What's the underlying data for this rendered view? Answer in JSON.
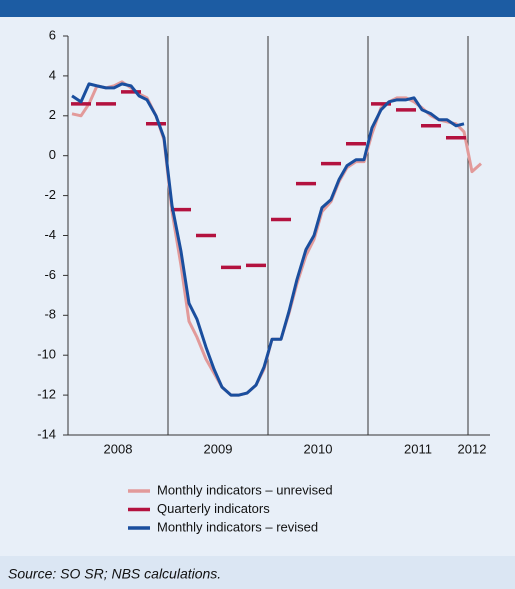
{
  "chart_data": {
    "type": "line",
    "xlim": [
      2008,
      2012.22
    ],
    "ylim": [
      -14,
      6
    ],
    "yticks": [
      -14,
      -12,
      -10,
      -8,
      -6,
      -4,
      -2,
      0,
      2,
      4,
      6
    ],
    "xticks": [
      {
        "value": 2008.5,
        "label": "2008"
      },
      {
        "value": 2009.5,
        "label": "2009"
      },
      {
        "value": 2010.5,
        "label": "2010"
      },
      {
        "value": 2011.5,
        "label": "2011"
      },
      {
        "value": 2012.04,
        "label": "2012"
      }
    ],
    "xgrid": [
      2009,
      2010,
      2011,
      2012
    ],
    "series": [
      {
        "name": "Monthly indicators – unrevised",
        "color": "#e29a9a",
        "kind": "line",
        "x": [
          2008.04,
          2008.13,
          2008.21,
          2008.29,
          2008.38,
          2008.46,
          2008.54,
          2008.63,
          2008.71,
          2008.79,
          2008.88,
          2008.96,
          2009.04,
          2009.13,
          2009.21,
          2009.29,
          2009.38,
          2009.46,
          2009.54,
          2009.63,
          2009.71,
          2009.79,
          2009.88,
          2009.96,
          2010.04,
          2010.13,
          2010.21,
          2010.29,
          2010.38,
          2010.46,
          2010.54,
          2010.63,
          2010.71,
          2010.79,
          2010.88,
          2010.96,
          2011.04,
          2011.13,
          2011.21,
          2011.29,
          2011.38,
          2011.46,
          2011.54,
          2011.63,
          2011.71,
          2011.79,
          2011.88,
          2011.96,
          2012.04,
          2012.13
        ],
        "values": [
          2.1,
          2.0,
          2.6,
          3.5,
          3.4,
          3.5,
          3.7,
          3.4,
          3.1,
          2.9,
          2.0,
          0.8,
          -2.8,
          -5.5,
          -8.3,
          -9.1,
          -10.2,
          -10.9,
          -11.6,
          -12.0,
          -12.0,
          -11.9,
          -11.5,
          -10.7,
          -9.2,
          -9.2,
          -7.9,
          -6.4,
          -5.0,
          -4.2,
          -2.8,
          -2.3,
          -1.3,
          -0.6,
          -0.3,
          -0.3,
          1.1,
          2.4,
          2.7,
          2.9,
          2.9,
          2.7,
          2.4,
          2.0,
          1.8,
          1.7,
          1.6,
          1.2,
          -0.8,
          -0.4
        ]
      },
      {
        "name": "Quarterly indicators",
        "color": "#b3123f",
        "kind": "segments",
        "x": [
          2008.13,
          2008.38,
          2008.63,
          2008.88,
          2009.13,
          2009.38,
          2009.63,
          2009.88,
          2010.13,
          2010.38,
          2010.63,
          2010.88,
          2011.13,
          2011.38,
          2011.63,
          2011.88
        ],
        "values": [
          2.6,
          2.6,
          3.2,
          1.6,
          -2.7,
          -4.0,
          -5.6,
          -5.5,
          -3.2,
          -1.4,
          -0.4,
          0.6,
          2.6,
          2.3,
          1.5,
          0.9
        ]
      },
      {
        "name": "Monthly indicators – revised",
        "color": "#1a4e9e",
        "kind": "line",
        "x": [
          2008.04,
          2008.13,
          2008.21,
          2008.29,
          2008.38,
          2008.46,
          2008.54,
          2008.63,
          2008.71,
          2008.79,
          2008.88,
          2008.96,
          2009.04,
          2009.13,
          2009.21,
          2009.29,
          2009.38,
          2009.46,
          2009.54,
          2009.63,
          2009.71,
          2009.79,
          2009.88,
          2009.96,
          2010.04,
          2010.13,
          2010.21,
          2010.29,
          2010.38,
          2010.46,
          2010.54,
          2010.63,
          2010.71,
          2010.79,
          2010.88,
          2010.96,
          2011.04,
          2011.13,
          2011.21,
          2011.29,
          2011.38,
          2011.46,
          2011.54,
          2011.63,
          2011.71,
          2011.79,
          2011.88,
          2011.96
        ],
        "values": [
          3.0,
          2.7,
          3.6,
          3.5,
          3.4,
          3.4,
          3.6,
          3.5,
          3.0,
          2.8,
          2.0,
          0.9,
          -2.5,
          -4.8,
          -7.4,
          -8.2,
          -9.6,
          -10.7,
          -11.6,
          -12.0,
          -12.0,
          -11.9,
          -11.5,
          -10.6,
          -9.2,
          -9.2,
          -7.8,
          -6.2,
          -4.7,
          -4.0,
          -2.6,
          -2.2,
          -1.2,
          -0.5,
          -0.2,
          -0.2,
          1.4,
          2.3,
          2.7,
          2.8,
          2.8,
          2.9,
          2.3,
          2.1,
          1.8,
          1.8,
          1.5,
          1.6
        ]
      }
    ],
    "source": "Source: SO SR; NBS calculations."
  }
}
